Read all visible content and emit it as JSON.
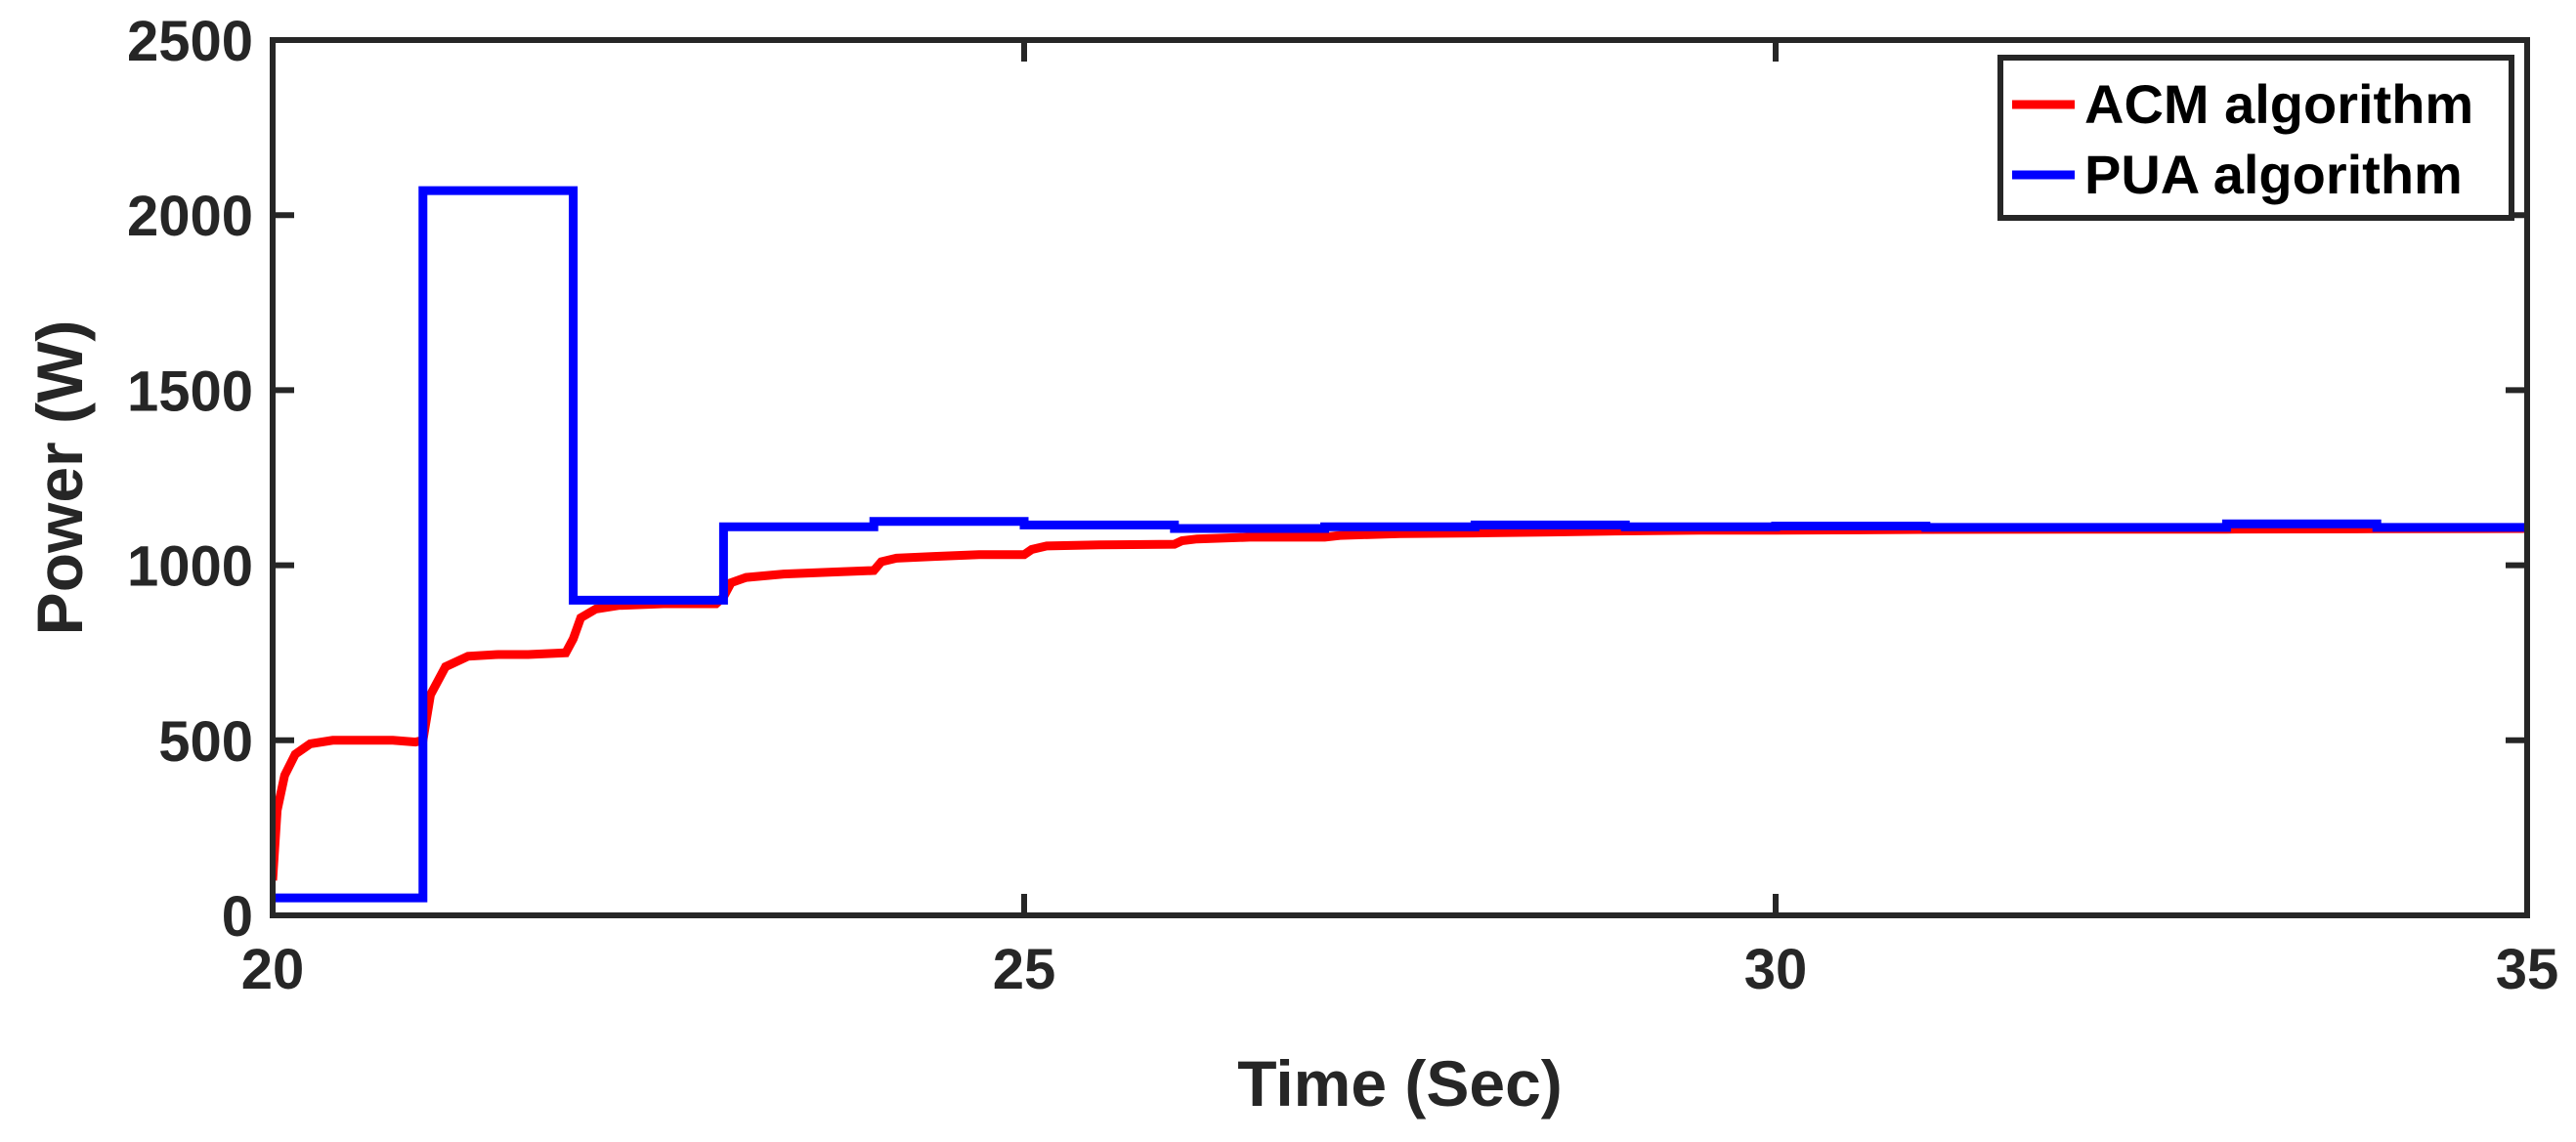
{
  "chart_data": {
    "type": "line",
    "title": "",
    "xlabel": "Time (Sec)",
    "ylabel": "Power (W)",
    "xlim": [
      20,
      35
    ],
    "ylim": [
      0,
      2500
    ],
    "xticks": [
      20,
      25,
      30,
      35
    ],
    "yticks": [
      0,
      500,
      1000,
      1500,
      2000,
      2500
    ],
    "grid": false,
    "legend_position": "top-right",
    "series": [
      {
        "name": "ACM algorithm",
        "color": "#ff0000",
        "x": [
          20,
          20.03,
          20.08,
          20.15,
          20.25,
          20.4,
          20.6,
          20.8,
          20.95,
          21.0,
          21.05,
          21.15,
          21.3,
          21.5,
          21.7,
          21.95,
          22.0,
          22.05,
          22.15,
          22.3,
          22.6,
          22.95,
          23.0,
          23.05,
          23.15,
          23.4,
          23.7,
          24.0,
          24.05,
          24.15,
          24.4,
          24.7,
          25.0,
          25.05,
          25.15,
          25.5,
          26.0,
          26.05,
          26.15,
          26.5,
          27.0,
          27.1,
          27.5,
          28.0,
          28.5,
          29.0,
          29.5,
          30.0,
          31.0,
          32.0,
          33.0,
          34.0,
          35.0
        ],
        "y": [
          100,
          300,
          400,
          460,
          490,
          500,
          500,
          500,
          495,
          500,
          630,
          710,
          740,
          745,
          745,
          750,
          790,
          850,
          875,
          885,
          890,
          890,
          910,
          950,
          965,
          975,
          980,
          985,
          1010,
          1020,
          1025,
          1030,
          1030,
          1045,
          1055,
          1058,
          1060,
          1070,
          1075,
          1080,
          1080,
          1085,
          1090,
          1092,
          1095,
          1098,
          1100,
          1100,
          1102,
          1103,
          1103,
          1104,
          1105
        ]
      },
      {
        "name": "PUA algorithm",
        "color": "#0000ff",
        "x": [
          20,
          21.0,
          21.0,
          22.0,
          22.0,
          23.0,
          23.0,
          24.0,
          24.0,
          25.0,
          25.0,
          26.0,
          26.0,
          27.0,
          27.0,
          28.0,
          28.0,
          29.0,
          29.0,
          30.0,
          30.0,
          31.0,
          31.0,
          32.0,
          32.0,
          33.0,
          33.0,
          34.0,
          34.0,
          35.0
        ],
        "y": [
          50,
          50,
          2070,
          2070,
          900,
          900,
          1110,
          1110,
          1125,
          1125,
          1115,
          1115,
          1105,
          1105,
          1110,
          1110,
          1115,
          1115,
          1110,
          1110,
          1112,
          1112,
          1108,
          1108,
          1108,
          1108,
          1118,
          1118,
          1108,
          1108
        ]
      }
    ]
  }
}
